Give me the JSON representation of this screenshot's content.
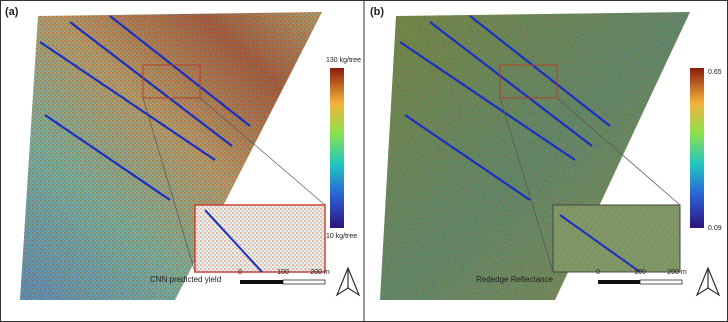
{
  "panels": [
    {
      "label": "(a)",
      "colorbar": {
        "max_label": "130 kg/tree",
        "min_label": "10 kg/tree"
      },
      "caption": "CNN predicted yield",
      "scale_bar": {
        "labels": [
          "0",
          "100",
          "200 m"
        ]
      }
    },
    {
      "label": "(b)",
      "colorbar": {
        "max_label": "0.65",
        "min_label": "0.09"
      },
      "caption": "Rededge Reflectance",
      "scale_bar": {
        "labels": [
          "0",
          "100",
          "200 m"
        ]
      }
    }
  ]
}
